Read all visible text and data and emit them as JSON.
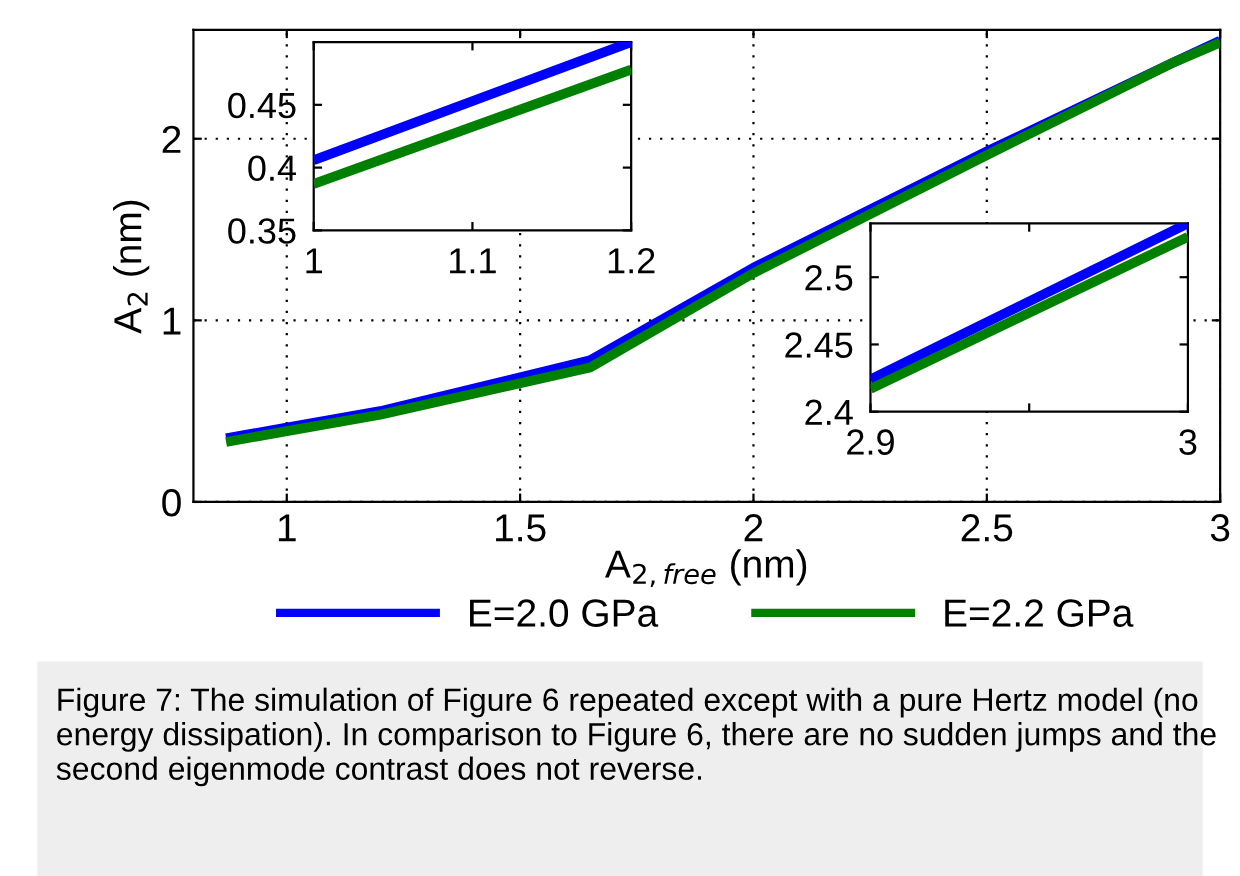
{
  "chart_data": [
    {
      "type": "line",
      "xlabel": "A$_{2,free}$ (nm)",
      "ylabel": "A$_{2}$ (nm)",
      "x": [
        0.87,
        1,
        1.2,
        1.65,
        2,
        2.5,
        2.9,
        3
      ],
      "xlim": [
        0.8,
        3
      ],
      "ylim": [
        0,
        2.6
      ],
      "xticks": [
        1,
        1.5,
        2,
        2.5,
        3
      ],
      "yticks": [
        0,
        1,
        2
      ],
      "grid": true,
      "legend": "bottom",
      "line_style": "solid",
      "series": [
        {
          "name": "E=2.0 GPa",
          "color": "#0000ff",
          "values": [
            0.35,
            0.41,
            0.5,
            0.78,
            1.29,
            1.93,
            2.42,
            2.54
          ]
        },
        {
          "name": "E=2.2 GPa",
          "color": "#008000",
          "values": [
            0.33,
            0.39,
            0.48,
            0.74,
            1.26,
            1.91,
            2.42,
            2.53
          ]
        }
      ],
      "annotations": [
        "Figure 7: The simulation of Figure 6 repeated except with a pure Hertz model (no energy dissipation). In comparison to Figure 6, there are no sudden jumps and the second eigenmode contrast does not reverse."
      ]
    },
    {
      "type": "line",
      "x": [
        1,
        1.2
      ],
      "xlim": [
        1,
        1.2
      ],
      "ylim": [
        0.35,
        0.5
      ],
      "xticks": [
        1,
        1.1,
        1.2
      ],
      "yticks": [
        0.35,
        0.4,
        0.45
      ],
      "line_style": "solid",
      "series": [
        {
          "color": "#0000ff",
          "values": [
            0.406,
            0.5
          ]
        },
        {
          "color": "#008000",
          "values": [
            0.387,
            0.478
          ]
        }
      ]
    },
    {
      "type": "line",
      "x": [
        2.9,
        3
      ],
      "xlim": [
        2.9,
        3
      ],
      "ylim": [
        2.4,
        2.54
      ],
      "xticks": [
        2.9,
        {
          "value": 2.95,
          "label": null
        },
        3
      ],
      "yticks": [
        2.4,
        2.45,
        2.5
      ],
      "line_style": "solid",
      "series": [
        {
          "color": "#0000ff",
          "values": [
            2.424,
            2.54
          ]
        },
        {
          "color": "#008000",
          "values": [
            2.417,
            2.53
          ]
        }
      ]
    }
  ]
}
